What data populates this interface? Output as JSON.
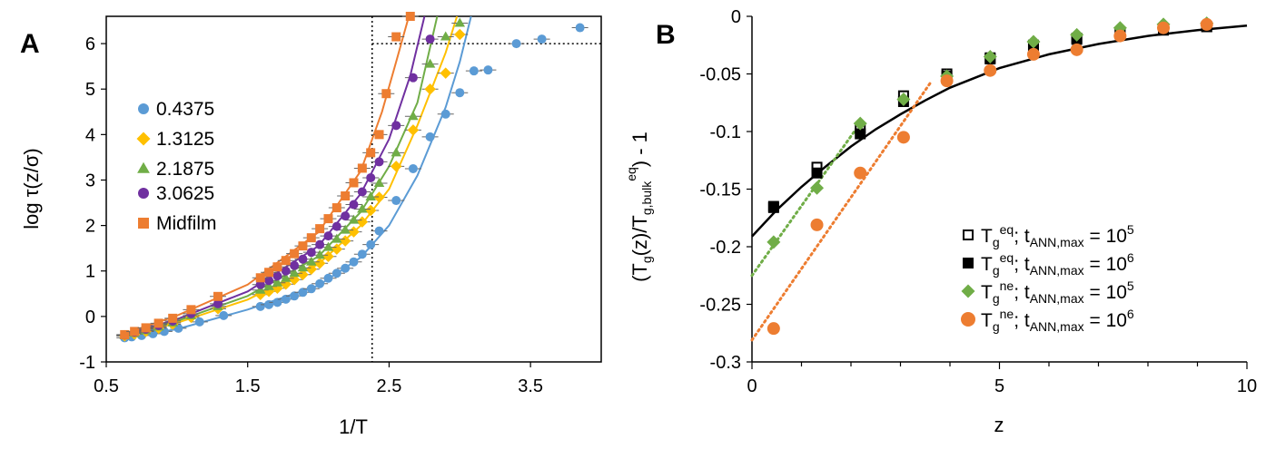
{
  "chart_data": [
    {
      "type": "scatter",
      "panel": "A",
      "xlabel": "1/T",
      "ylabel": "log τ(z/σ)",
      "xlim": [
        0.5,
        4.0
      ],
      "ylim": [
        -1,
        6.6
      ],
      "xticks": [
        "0.5",
        "1.5",
        "2.5",
        "3.5"
      ],
      "xtick_values": [
        0.5,
        1.5,
        2.5,
        3.5
      ],
      "yticks": [
        "-1",
        "0",
        "1",
        "2",
        "3",
        "4",
        "5",
        "6"
      ],
      "ytick_values": [
        -1,
        0,
        1,
        2,
        3,
        4,
        5,
        6
      ],
      "reference_lines": {
        "vertical_x": 2.38,
        "horizontal_y": 6
      },
      "legend_position": "left-middle",
      "series": [
        {
          "name": "0.4375",
          "color": "#5b9bd5",
          "marker": "circle",
          "x": [
            0.63,
            0.68,
            0.75,
            0.83,
            0.91,
            1.01,
            1.16,
            1.33,
            1.59,
            1.65,
            1.71,
            1.77,
            1.83,
            1.89,
            1.95,
            2.01,
            2.07,
            2.13,
            2.19,
            2.25,
            2.31,
            2.37,
            2.43,
            2.55,
            2.67,
            2.79,
            2.9,
            3.0,
            3.1,
            3.2,
            3.4,
            3.58,
            3.85
          ],
          "y": [
            -0.47,
            -0.45,
            -0.42,
            -0.38,
            -0.33,
            -0.26,
            -0.12,
            0.02,
            0.22,
            0.26,
            0.31,
            0.38,
            0.45,
            0.53,
            0.61,
            0.72,
            0.84,
            0.95,
            1.06,
            1.2,
            1.37,
            1.58,
            1.88,
            2.55,
            3.25,
            3.95,
            4.45,
            4.92,
            5.4,
            5.42,
            6.0,
            6.1,
            6.35
          ],
          "fit": [
            [
              0.6,
              -0.49
            ],
            [
              1.0,
              -0.28
            ],
            [
              1.5,
              0.15
            ],
            [
              2.0,
              0.68
            ],
            [
              2.3,
              1.3
            ],
            [
              2.5,
              2.0
            ],
            [
              2.7,
              3.1
            ],
            [
              2.9,
              4.6
            ],
            [
              3.0,
              5.6
            ],
            [
              3.08,
              6.6
            ]
          ]
        },
        {
          "name": "1.3125",
          "color": "#ffc000",
          "marker": "diamond",
          "x": [
            0.63,
            0.7,
            0.78,
            0.87,
            0.97,
            1.1,
            1.29,
            1.59,
            1.65,
            1.71,
            1.77,
            1.83,
            1.89,
            1.95,
            2.01,
            2.07,
            2.13,
            2.19,
            2.25,
            2.31,
            2.37,
            2.43,
            2.55,
            2.67,
            2.79,
            2.9,
            3.0
          ],
          "y": [
            -0.43,
            -0.39,
            -0.33,
            -0.26,
            -0.17,
            -0.02,
            0.17,
            0.48,
            0.55,
            0.62,
            0.71,
            0.81,
            0.92,
            1.04,
            1.17,
            1.32,
            1.48,
            1.66,
            1.86,
            2.08,
            2.33,
            2.62,
            3.3,
            4.1,
            5.0,
            5.35,
            6.2
          ],
          "fit": [
            [
              0.6,
              -0.45
            ],
            [
              1.0,
              -0.14
            ],
            [
              1.5,
              0.37
            ],
            [
              2.0,
              1.15
            ],
            [
              2.3,
              2.0
            ],
            [
              2.5,
              2.8
            ],
            [
              2.7,
              4.2
            ],
            [
              2.9,
              5.8
            ],
            [
              2.98,
              6.6
            ]
          ]
        },
        {
          "name": "2.1875",
          "color": "#70ad47",
          "marker": "triangle",
          "x": [
            0.63,
            0.7,
            0.78,
            0.87,
            0.97,
            1.1,
            1.29,
            1.59,
            1.65,
            1.71,
            1.77,
            1.83,
            1.89,
            1.95,
            2.01,
            2.07,
            2.13,
            2.19,
            2.25,
            2.31,
            2.37,
            2.43,
            2.55,
            2.67,
            2.79,
            2.9,
            3.0
          ],
          "y": [
            -0.42,
            -0.37,
            -0.31,
            -0.23,
            -0.14,
            0.02,
            0.22,
            0.58,
            0.66,
            0.74,
            0.84,
            0.95,
            1.07,
            1.2,
            1.35,
            1.52,
            1.7,
            1.9,
            2.12,
            2.36,
            2.63,
            2.93,
            3.6,
            4.4,
            5.55,
            6.15,
            6.45
          ],
          "fit": [
            [
              0.6,
              -0.44
            ],
            [
              1.0,
              -0.1
            ],
            [
              1.5,
              0.45
            ],
            [
              2.0,
              1.32
            ],
            [
              2.3,
              2.3
            ],
            [
              2.5,
              3.3
            ],
            [
              2.7,
              4.7
            ],
            [
              2.84,
              6.6
            ]
          ]
        },
        {
          "name": "3.0625",
          "color": "#7030a0",
          "marker": "circle",
          "x": [
            0.63,
            0.7,
            0.78,
            0.87,
            0.97,
            1.1,
            1.29,
            1.59,
            1.65,
            1.71,
            1.77,
            1.83,
            1.89,
            1.95,
            2.01,
            2.07,
            2.13,
            2.19,
            2.25,
            2.31,
            2.37,
            2.43,
            2.55,
            2.67,
            2.79
          ],
          "y": [
            -0.41,
            -0.35,
            -0.28,
            -0.2,
            -0.1,
            0.06,
            0.28,
            0.7,
            0.79,
            0.89,
            1.0,
            1.12,
            1.26,
            1.41,
            1.58,
            1.77,
            1.98,
            2.21,
            2.46,
            2.74,
            3.05,
            3.4,
            4.2,
            5.25,
            6.1
          ],
          "fit": [
            [
              0.6,
              -0.43
            ],
            [
              1.0,
              -0.06
            ],
            [
              1.5,
              0.55
            ],
            [
              2.0,
              1.55
            ],
            [
              2.3,
              2.7
            ],
            [
              2.5,
              3.9
            ],
            [
              2.65,
              5.3
            ],
            [
              2.75,
              6.6
            ]
          ]
        },
        {
          "name": "Midfilm",
          "color": "#ed7d31",
          "marker": "square",
          "x": [
            0.63,
            0.7,
            0.78,
            0.87,
            0.97,
            1.1,
            1.29,
            1.59,
            1.65,
            1.71,
            1.77,
            1.83,
            1.89,
            1.95,
            2.01,
            2.07,
            2.13,
            2.19,
            2.25,
            2.31,
            2.37,
            2.43,
            2.48,
            2.55,
            2.65
          ],
          "y": [
            -0.4,
            -0.33,
            -0.25,
            -0.15,
            -0.04,
            0.15,
            0.44,
            0.85,
            0.97,
            1.09,
            1.23,
            1.38,
            1.55,
            1.73,
            1.93,
            2.15,
            2.39,
            2.65,
            2.94,
            3.26,
            3.6,
            4.0,
            4.9,
            6.15,
            6.6
          ],
          "fit": [
            [
              0.6,
              -0.41
            ],
            [
              1.0,
              0.02
            ],
            [
              1.5,
              0.7
            ],
            [
              2.0,
              1.85
            ],
            [
              2.3,
              3.2
            ],
            [
              2.45,
              4.5
            ],
            [
              2.55,
              5.6
            ],
            [
              2.64,
              6.6
            ]
          ]
        }
      ]
    },
    {
      "type": "scatter",
      "panel": "B",
      "xlabel": "z",
      "ylabel": "(T_g(z)/T_g,bulk^eq) - 1",
      "xlim": [
        0,
        10
      ],
      "ylim": [
        -0.3,
        0
      ],
      "xticks": [
        "0",
        "5",
        "10"
      ],
      "xtick_values": [
        0,
        5,
        10
      ],
      "yticks": [
        "0",
        "-0.05",
        "-0.1",
        "-0.15",
        "-0.2",
        "-0.25",
        "-0.3"
      ],
      "ytick_values": [
        0,
        -0.05,
        -0.1,
        -0.15,
        -0.2,
        -0.25,
        -0.3
      ],
      "legend_position": "bottom-right",
      "series": [
        {
          "legend_id": "eq-1e5",
          "color": "#000000",
          "marker": "open-square",
          "x": [
            0.4375,
            1.3125,
            2.1875,
            3.0625,
            3.9375,
            4.8125,
            5.6875,
            6.5625,
            7.4375,
            8.3125,
            9.1875
          ],
          "y": [
            -0.165,
            -0.131,
            -0.097,
            -0.069,
            -0.05,
            -0.036,
            -0.025,
            -0.019,
            -0.014,
            -0.011,
            -0.009
          ]
        },
        {
          "legend_id": "eq-1e6",
          "color": "#000000",
          "marker": "filled-square",
          "x": [
            0.4375,
            1.3125,
            2.1875,
            3.0625,
            3.9375,
            4.8125,
            5.6875,
            6.5625,
            7.4375,
            8.3125,
            9.1875
          ],
          "y": [
            -0.166,
            -0.136,
            -0.102,
            -0.074,
            -0.052,
            -0.037,
            -0.027,
            -0.02,
            -0.015,
            -0.012,
            -0.009
          ]
        },
        {
          "legend_id": "ne-1e5",
          "color": "#70ad47",
          "marker": "diamond",
          "x": [
            0.4375,
            1.3125,
            2.1875,
            3.0625,
            3.9375,
            4.8125,
            5.6875,
            6.5625,
            7.4375,
            8.3125,
            9.1875
          ],
          "y": [
            -0.196,
            -0.149,
            -0.093,
            -0.072,
            -0.052,
            -0.035,
            -0.022,
            -0.016,
            -0.01,
            -0.007,
            -0.006
          ]
        },
        {
          "legend_id": "ne-1e6",
          "color": "#ed7d31",
          "marker": "circle",
          "x": [
            0.4375,
            1.3125,
            2.1875,
            3.0625,
            3.9375,
            4.8125,
            5.6875,
            6.5625,
            7.4375,
            8.3125,
            9.1875
          ],
          "y": [
            -0.271,
            -0.181,
            -0.136,
            -0.105,
            -0.056,
            -0.047,
            -0.033,
            -0.029,
            -0.017,
            -0.01,
            -0.007
          ]
        }
      ],
      "fit_lines": [
        {
          "color": "#000000",
          "style": "solid",
          "points": [
            [
              0,
              -0.191
            ],
            [
              0.5,
              -0.168
            ],
            [
              1,
              -0.148
            ],
            [
              1.5,
              -0.13
            ],
            [
              2,
              -0.113
            ],
            [
              2.5,
              -0.098
            ],
            [
              3,
              -0.085
            ],
            [
              3.5,
              -0.073
            ],
            [
              4,
              -0.062
            ],
            [
              5,
              -0.045
            ],
            [
              6,
              -0.033
            ],
            [
              7,
              -0.024
            ],
            [
              8,
              -0.017
            ],
            [
              9,
              -0.012
            ],
            [
              10,
              -0.008
            ]
          ]
        },
        {
          "color": "#70ad47",
          "style": "dotted",
          "points": [
            [
              0,
              -0.225
            ],
            [
              2.2,
              -0.092
            ]
          ]
        },
        {
          "color": "#ed7d31",
          "style": "dotted",
          "points": [
            [
              0,
              -0.281
            ],
            [
              3.6,
              -0.058
            ]
          ]
        }
      ]
    }
  ],
  "labels": {
    "panel_a": "A",
    "panel_b": "B",
    "legend_a": [
      "0.4375",
      "1.3125",
      "2.1875",
      "3.0625",
      "Midfilm"
    ],
    "legend_b": [
      {
        "sup": "eq",
        "t": "10",
        "exp": "5"
      },
      {
        "sup": "eq",
        "t": "10",
        "exp": "6"
      },
      {
        "sup": "ne",
        "t": "10",
        "exp": "5"
      },
      {
        "sup": "ne",
        "t": "10",
        "exp": "6"
      }
    ],
    "legend_b_T": "T",
    "legend_b_g": "g",
    "legend_b_t": "t",
    "legend_b_ann": "ANN,max",
    "legend_b_eqsign": " = ",
    "ylabel_b_parts": {
      "open": "(T",
      "g": "g",
      "mid": "(z)/T",
      "gbulk": "g,bulk",
      "eq": "eq",
      "close": ") - 1"
    }
  }
}
